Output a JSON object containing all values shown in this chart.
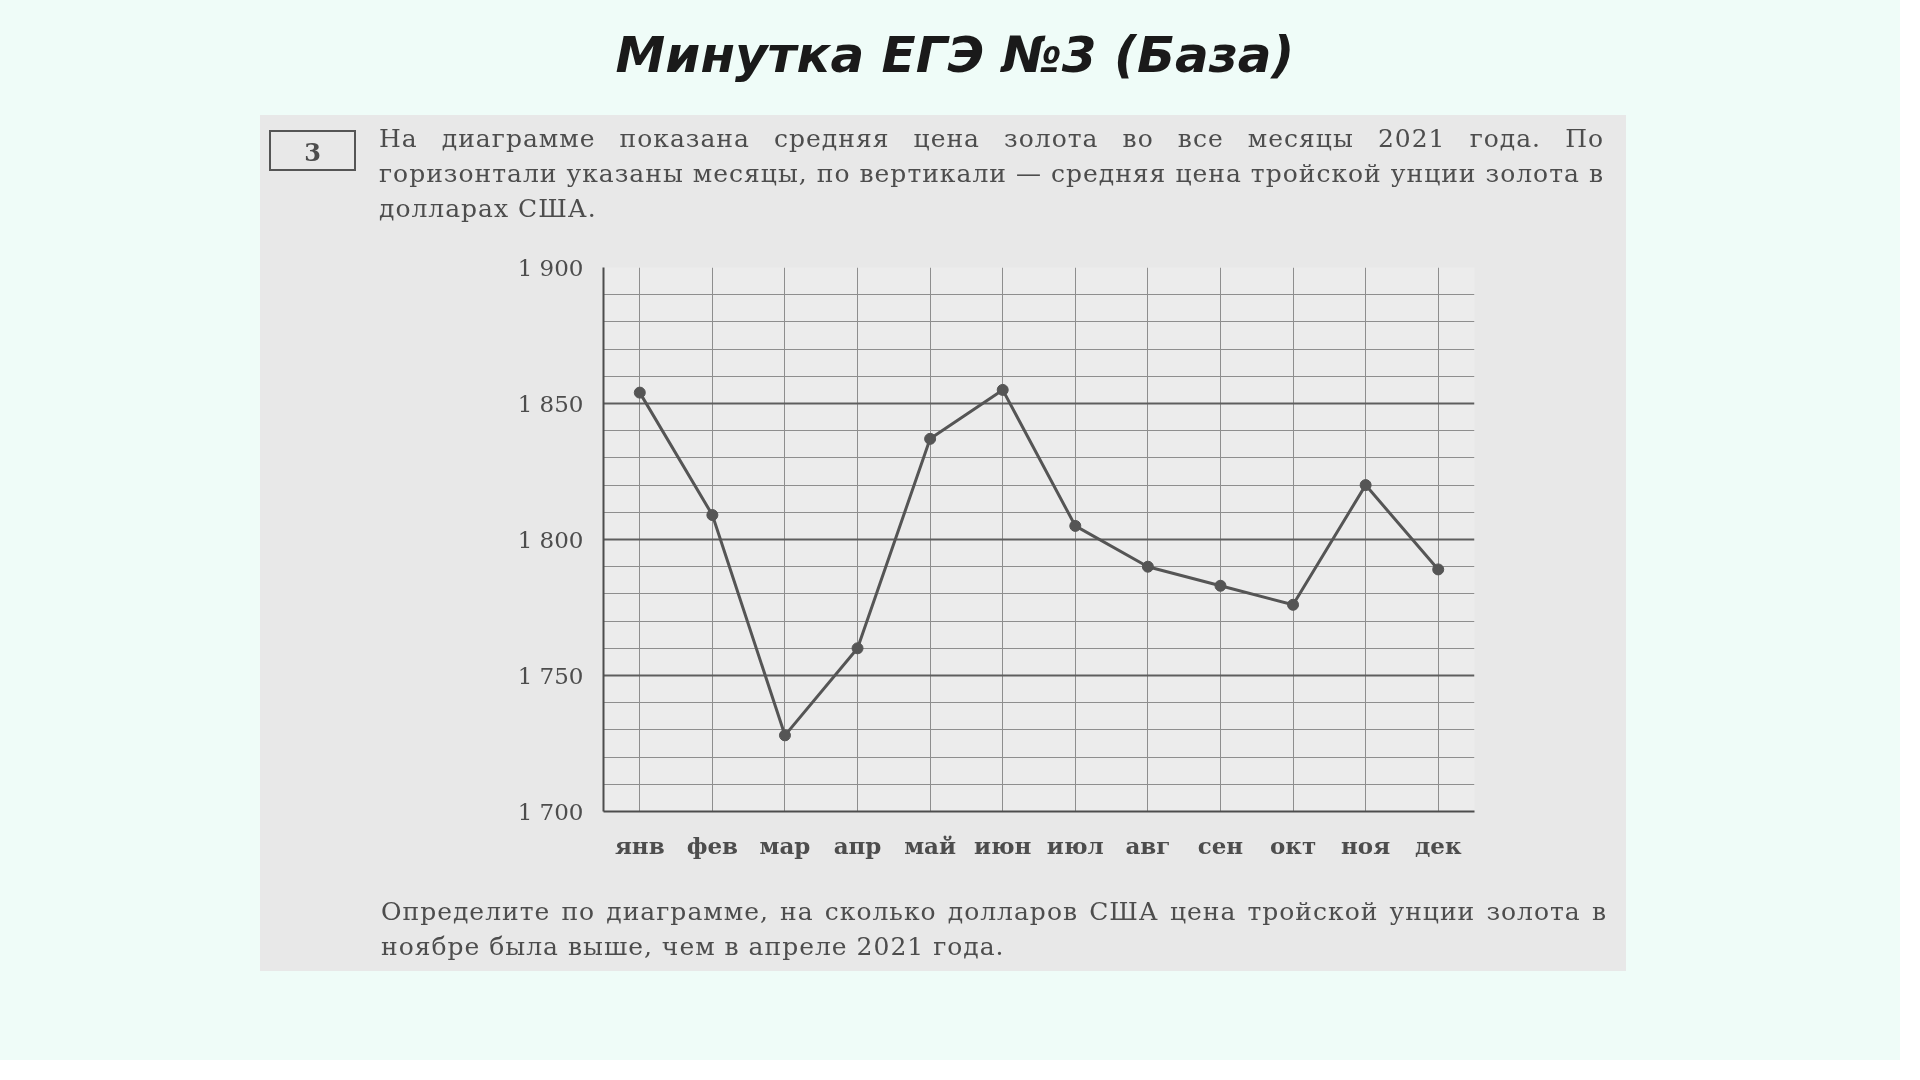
{
  "chart_data": {
    "type": "line",
    "title": "Минутка ЕГЭ №3 (База)",
    "subtitle": "На диаграмме показана средняя цена золота во все месяцы 2021 года. По горизонтали указаны месяцы, по вертикали — средняя цена тройской унции золота в долларах США.",
    "annotations": [
      "3",
      "Определите по диаграмме, на сколько долларов США цена тройской унции золота в ноябре была выше, чем в апреле 2021 года."
    ],
    "categories": [
      "янв",
      "фев",
      "мар",
      "апр",
      "май",
      "июн",
      "июл",
      "авг",
      "сен",
      "окт",
      "ноя",
      "дек"
    ],
    "series": [
      {
        "color": "#555555",
        "values": [
          1854,
          1809,
          1728,
          1760,
          1837,
          1855,
          1805,
          1790,
          1783,
          1776,
          1820,
          1789
        ]
      }
    ],
    "ylim": [
      1700,
      1900
    ],
    "yticks": [
      {
        "value": 1700,
        "label": "1 700"
      },
      {
        "value": 1710,
        "label": null
      },
      {
        "value": 1720,
        "label": null
      },
      {
        "value": 1730,
        "label": null
      },
      {
        "value": 1740,
        "label": null
      },
      {
        "value": 1750,
        "label": "1 750"
      },
      {
        "value": 1760,
        "label": null
      },
      {
        "value": 1770,
        "label": null
      },
      {
        "value": 1780,
        "label": null
      },
      {
        "value": 1790,
        "label": null
      },
      {
        "value": 1800,
        "label": "1 800"
      },
      {
        "value": 1810,
        "label": null
      },
      {
        "value": 1820,
        "label": null
      },
      {
        "value": 1830,
        "label": null
      },
      {
        "value": 1840,
        "label": null
      },
      {
        "value": 1850,
        "label": "1 850"
      },
      {
        "value": 1860,
        "label": null
      },
      {
        "value": 1870,
        "label": null
      },
      {
        "value": 1880,
        "label": null
      },
      {
        "value": 1890,
        "label": null
      },
      {
        "value": 1900,
        "label": "1 900"
      }
    ],
    "grid": true,
    "marker": "circle",
    "line_style": "solid"
  }
}
